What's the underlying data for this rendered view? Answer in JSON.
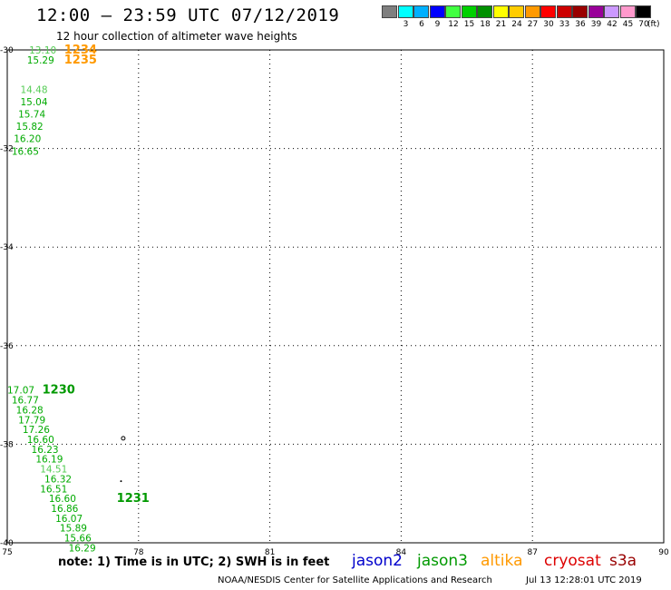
{
  "header": {
    "title": "12:00 – 23:59 UTC 07/12/2019",
    "subtitle": "12 hour collection of altimeter wave heights"
  },
  "color_scale": {
    "unit": "(ft)",
    "items": [
      {
        "label": "",
        "color": "#7f7f7f"
      },
      {
        "label": "3",
        "color": "#00ffff"
      },
      {
        "label": "6",
        "color": "#00b0ff"
      },
      {
        "label": "9",
        "color": "#0000ff"
      },
      {
        "label": "12",
        "color": "#40ff40"
      },
      {
        "label": "15",
        "color": "#00d000"
      },
      {
        "label": "18",
        "color": "#009000"
      },
      {
        "label": "21",
        "color": "#ffff00"
      },
      {
        "label": "24",
        "color": "#ffcc00"
      },
      {
        "label": "27",
        "color": "#ff9900"
      },
      {
        "label": "30",
        "color": "#ff0000"
      },
      {
        "label": "33",
        "color": "#cc0000"
      },
      {
        "label": "36",
        "color": "#990000"
      },
      {
        "label": "39",
        "color": "#990099"
      },
      {
        "label": "42",
        "color": "#cc99ff"
      },
      {
        "label": "45",
        "color": "#ff99cc"
      },
      {
        "label": "70",
        "color": "#000000"
      }
    ]
  },
  "footer": {
    "note": "note:  1) Time is in UTC;  2) SWH is in feet",
    "credit": "NOAA/NESDIS Center for Satellite Applications and Research",
    "timestamp": "Jul 13 12:28:01 UTC 2019"
  },
  "satellites": [
    {
      "name": "jason2",
      "color": "#0000cc"
    },
    {
      "name": "jason3",
      "color": "#009900"
    },
    {
      "name": "altika",
      "color": "#ff9900"
    },
    {
      "name": "cryosat",
      "color": "#dd0000"
    },
    {
      "name": "s3a",
      "color": "#990000"
    }
  ],
  "chart_data": {
    "type": "scatter",
    "x_axis": {
      "range": [
        75,
        90
      ],
      "ticks": [
        "75",
        "78",
        "81",
        "84",
        "87",
        "90"
      ]
    },
    "y_axis": {
      "range": [
        -40,
        -30
      ],
      "ticks": [
        "-30",
        "-32",
        "-34",
        "-36",
        "-38",
        "-40"
      ]
    },
    "grid": true,
    "groups": [
      {
        "color": "#55cc55",
        "points": [
          {
            "lon": 75.5,
            "lat": -30.0,
            "label": "13.10"
          },
          {
            "lon": 75.3,
            "lat": -30.8,
            "label": "14.48"
          }
        ]
      },
      {
        "color": "#00aa00",
        "points": [
          {
            "lon": 75.45,
            "lat": -30.2,
            "label": "15.29"
          },
          {
            "lon": 75.3,
            "lat": -31.05,
            "label": "15.04"
          },
          {
            "lon": 75.25,
            "lat": -31.3,
            "label": "15.74"
          },
          {
            "lon": 75.2,
            "lat": -31.55,
            "label": "15.82"
          },
          {
            "lon": 75.15,
            "lat": -31.8,
            "label": "16.20"
          },
          {
            "lon": 75.1,
            "lat": -32.05,
            "label": "16.65"
          }
        ]
      },
      {
        "color": "#00aa00",
        "points": [
          {
            "lon": 75.0,
            "lat": -36.9,
            "label": "17.07"
          },
          {
            "lon": 75.1,
            "lat": -37.1,
            "label": "16.77"
          },
          {
            "lon": 75.2,
            "lat": -37.3,
            "label": "16.28"
          },
          {
            "lon": 75.25,
            "lat": -37.5,
            "label": "17.79"
          },
          {
            "lon": 75.35,
            "lat": -37.7,
            "label": "17.26"
          },
          {
            "lon": 75.45,
            "lat": -37.9,
            "label": "16.60"
          },
          {
            "lon": 75.55,
            "lat": -38.1,
            "label": "16.23"
          },
          {
            "lon": 75.65,
            "lat": -38.3,
            "label": "16.19"
          },
          {
            "lon": 75.75,
            "lat": -38.9,
            "label": "16.51"
          },
          {
            "lon": 75.85,
            "lat": -38.7,
            "label": "16.32"
          },
          {
            "lon": 75.95,
            "lat": -39.1,
            "label": "16.60"
          },
          {
            "lon": 76.0,
            "lat": -39.3,
            "label": "16.86"
          },
          {
            "lon": 76.1,
            "lat": -39.5,
            "label": "16.07"
          },
          {
            "lon": 76.2,
            "lat": -39.7,
            "label": "15.89"
          },
          {
            "lon": 76.3,
            "lat": -39.9,
            "label": "15.66"
          },
          {
            "lon": 76.4,
            "lat": -40.1,
            "label": "16.29"
          }
        ]
      },
      {
        "color": "#55cc55",
        "points": [
          {
            "lon": 75.75,
            "lat": -38.5,
            "label": "14.51"
          }
        ]
      }
    ],
    "pass_labels": [
      {
        "text": "1234",
        "lon": 76.3,
        "lat": -30.0,
        "color": "#ff9900"
      },
      {
        "text": "1235",
        "lon": 76.3,
        "lat": -30.2,
        "color": "#ff9900"
      },
      {
        "text": "1230",
        "lon": 75.8,
        "lat": -36.9,
        "color": "#009900"
      },
      {
        "text": "1231",
        "lon": 77.5,
        "lat": -39.1,
        "color": "#009900"
      }
    ]
  }
}
